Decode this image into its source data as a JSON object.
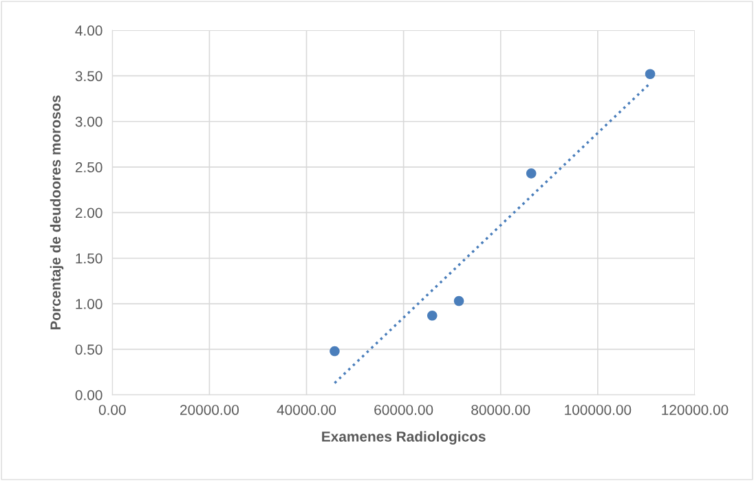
{
  "chart_data": {
    "type": "scatter",
    "xlabel": "Examenes Radiologicos",
    "ylabel": "Porcentaje de deudoores morosos",
    "series": [
      {
        "color": "#4a7ebb",
        "marker": "circle",
        "x": [
          45800,
          65900,
          71400,
          86300,
          110800
        ],
        "values": [
          0.48,
          0.87,
          1.03,
          2.43,
          3.52
        ]
      },
      {
        "type": "line",
        "color": "#4a7ebb",
        "line_style": "dotted",
        "marker": "none",
        "x": [
          45800,
          110800
        ],
        "values": [
          0.13,
          3.42
        ]
      }
    ],
    "xlim": [
      0,
      120000
    ],
    "ylim": [
      0,
      4
    ],
    "xticks": [
      {
        "value": 0,
        "label": "0.00"
      },
      {
        "value": 20000,
        "label": "20000.00"
      },
      {
        "value": 40000,
        "label": "40000.00"
      },
      {
        "value": 60000,
        "label": "60000.00"
      },
      {
        "value": 80000,
        "label": "80000.00"
      },
      {
        "value": 100000,
        "label": "100000.00"
      },
      {
        "value": 120000,
        "label": "120000.00"
      }
    ],
    "yticks": [
      {
        "value": 0,
        "label": "0.00"
      },
      {
        "value": 0.5,
        "label": "0.50"
      },
      {
        "value": 1,
        "label": "1.00"
      },
      {
        "value": 1.5,
        "label": "1.50"
      },
      {
        "value": 2,
        "label": "2.00"
      },
      {
        "value": 2.5,
        "label": "2.50"
      },
      {
        "value": 3,
        "label": "3.00"
      },
      {
        "value": 3.5,
        "label": "3.50"
      },
      {
        "value": 4,
        "label": "4.00"
      }
    ],
    "grid": true
  }
}
